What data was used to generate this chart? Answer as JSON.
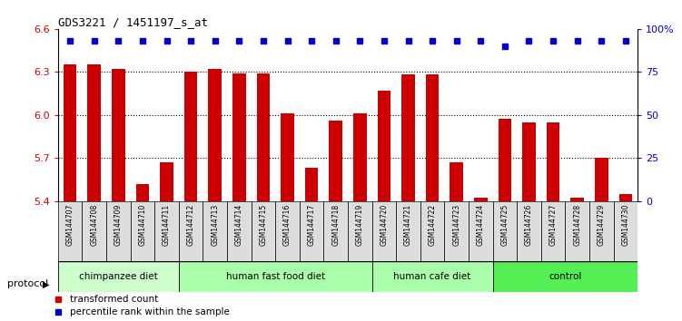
{
  "title": "GDS3221 / 1451197_s_at",
  "samples": [
    "GSM144707",
    "GSM144708",
    "GSM144709",
    "GSM144710",
    "GSM144711",
    "GSM144712",
    "GSM144713",
    "GSM144714",
    "GSM144715",
    "GSM144716",
    "GSM144717",
    "GSM144718",
    "GSM144719",
    "GSM144720",
    "GSM144721",
    "GSM144722",
    "GSM144723",
    "GSM144724",
    "GSM144725",
    "GSM144726",
    "GSM144727",
    "GSM144728",
    "GSM144729",
    "GSM144730"
  ],
  "bar_values": [
    6.35,
    6.35,
    6.32,
    5.52,
    5.67,
    6.3,
    6.32,
    6.29,
    6.29,
    6.01,
    5.63,
    5.96,
    6.01,
    6.17,
    6.28,
    6.28,
    5.67,
    5.42,
    5.97,
    5.95,
    5.95,
    5.42,
    5.7,
    5.45
  ],
  "percentile_values": [
    93,
    93,
    93,
    93,
    93,
    93,
    93,
    93,
    93,
    93,
    93,
    93,
    93,
    93,
    93,
    93,
    93,
    93,
    90,
    93,
    93,
    93,
    93,
    93
  ],
  "bar_color": "#cc0000",
  "percentile_color": "#0000cc",
  "ymin": 5.4,
  "ymax": 6.6,
  "yticks": [
    5.4,
    5.7,
    6.0,
    6.3,
    6.6
  ],
  "y2min": 0,
  "y2max": 100,
  "y2ticks": [
    0,
    25,
    50,
    75,
    100
  ],
  "groups": [
    {
      "label": "chimpanzee diet",
      "start": 0,
      "end": 5,
      "color": "#ccffcc"
    },
    {
      "label": "human fast food diet",
      "start": 5,
      "end": 13,
      "color": "#aaffaa"
    },
    {
      "label": "human cafe diet",
      "start": 13,
      "end": 18,
      "color": "#aaffaa"
    },
    {
      "label": "control",
      "start": 18,
      "end": 24,
      "color": "#55ee55"
    }
  ],
  "protocol_label": "protocol",
  "legend_bar_label": "transformed count",
  "legend_pct_label": "percentile rank within the sample",
  "background_color": "#ffffff",
  "plot_bg_color": "#ffffff",
  "tick_label_color_left": "#cc0000",
  "tick_label_color_right": "#0000cc",
  "sample_box_color": "#dddddd"
}
